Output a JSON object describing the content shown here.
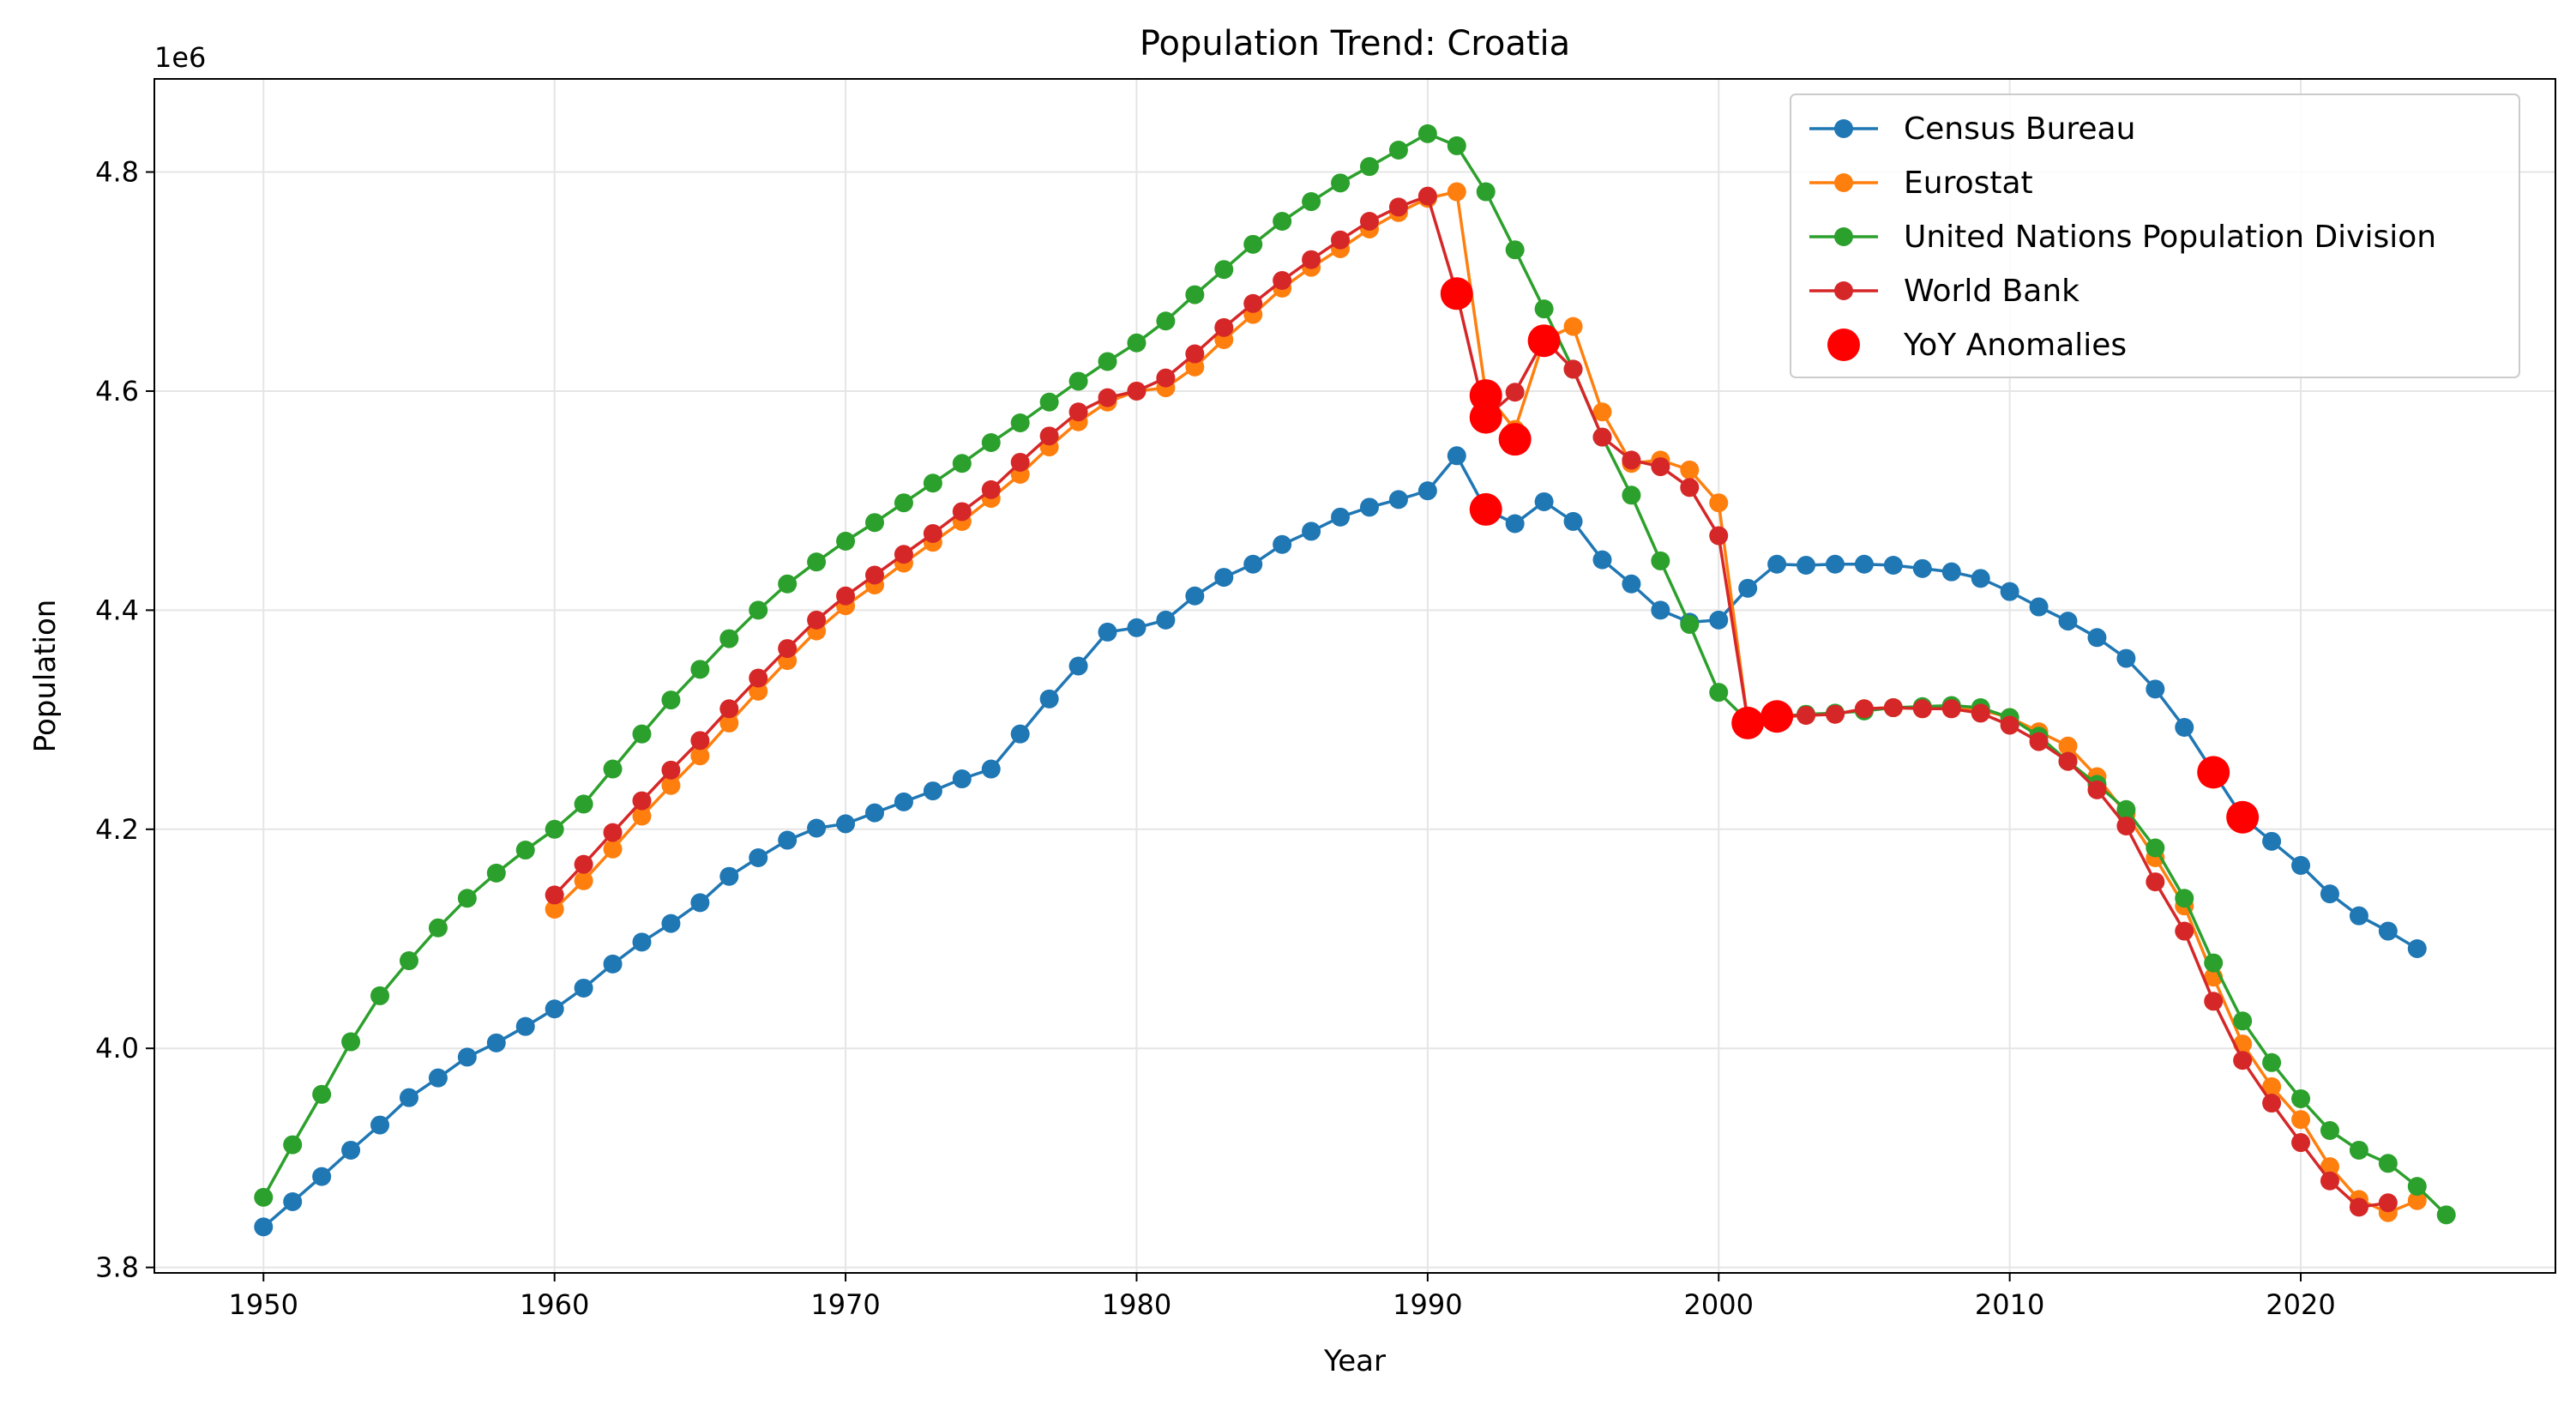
{
  "chart_data": {
    "type": "line",
    "title": "Population Trend: Croatia",
    "xlabel": "Year",
    "ylabel": "Population",
    "y_offset_label": "1e6",
    "xlim": [
      1946.25,
      2028.75
    ],
    "ylim": [
      3.795,
      4.885
    ],
    "x_ticks": [
      1950,
      1960,
      1970,
      1980,
      1990,
      2000,
      2010,
      2020
    ],
    "x_tick_labels": [
      "1950",
      "1960",
      "1970",
      "1980",
      "1990",
      "2000",
      "2010",
      "2020"
    ],
    "y_ticks": [
      3.8,
      4.0,
      4.2,
      4.4,
      4.6,
      4.8
    ],
    "y_tick_labels": [
      "3.8",
      "4.0",
      "4.2",
      "4.4",
      "4.6",
      "4.8"
    ],
    "y_unit_note": "values in millions (axis multiplier 1e6)",
    "grid": true,
    "legend_position": "top-right",
    "series": [
      {
        "name": "Census Bureau",
        "color": "#1f77b4",
        "x": [
          1950,
          1951,
          1952,
          1953,
          1954,
          1955,
          1956,
          1957,
          1958,
          1959,
          1960,
          1961,
          1962,
          1963,
          1964,
          1965,
          1966,
          1967,
          1968,
          1969,
          1970,
          1971,
          1972,
          1973,
          1974,
          1975,
          1976,
          1977,
          1978,
          1979,
          1980,
          1981,
          1982,
          1983,
          1984,
          1985,
          1986,
          1987,
          1988,
          1989,
          1990,
          1991,
          1992,
          1993,
          1994,
          1995,
          1996,
          1997,
          1998,
          1999,
          2000,
          2001,
          2002,
          2003,
          2004,
          2005,
          2006,
          2007,
          2008,
          2009,
          2010,
          2011,
          2012,
          2013,
          2014,
          2015,
          2016,
          2017,
          2018,
          2019,
          2020,
          2021,
          2022,
          2023,
          2024
        ],
        "y": [
          3.837,
          3.86,
          3.883,
          3.907,
          3.93,
          3.955,
          3.973,
          3.992,
          4.005,
          4.02,
          4.036,
          4.055,
          4.077,
          4.097,
          4.114,
          4.133,
          4.157,
          4.174,
          4.19,
          4.201,
          4.205,
          4.215,
          4.225,
          4.235,
          4.246,
          4.255,
          4.287,
          4.319,
          4.349,
          4.38,
          4.384,
          4.391,
          4.413,
          4.43,
          4.442,
          4.46,
          4.472,
          4.485,
          4.494,
          4.501,
          4.509,
          4.541,
          4.492,
          4.479,
          4.499,
          4.481,
          4.446,
          4.424,
          4.4,
          4.389,
          4.391,
          4.42,
          4.442,
          4.441,
          4.442,
          4.442,
          4.441,
          4.438,
          4.435,
          4.429,
          4.417,
          4.403,
          4.39,
          4.375,
          4.356,
          4.328,
          4.293,
          4.252,
          4.211,
          4.189,
          4.167,
          4.141,
          4.121,
          4.107,
          4.091
        ]
      },
      {
        "name": "Eurostat",
        "color": "#ff7f0e",
        "x": [
          1960,
          1961,
          1962,
          1963,
          1964,
          1965,
          1966,
          1967,
          1968,
          1969,
          1970,
          1971,
          1972,
          1973,
          1974,
          1975,
          1976,
          1977,
          1978,
          1979,
          1980,
          1981,
          1982,
          1983,
          1984,
          1985,
          1986,
          1987,
          1988,
          1989,
          1990,
          1991,
          1992,
          1993,
          1994,
          1995,
          1996,
          1997,
          1998,
          1999,
          2000,
          2001,
          2002,
          2003,
          2004,
          2005,
          2006,
          2007,
          2008,
          2009,
          2010,
          2011,
          2012,
          2013,
          2014,
          2015,
          2016,
          2017,
          2018,
          2019,
          2020,
          2021,
          2022,
          2023,
          2024
        ],
        "y": [
          4.127,
          4.153,
          4.182,
          4.212,
          4.24,
          4.267,
          4.297,
          4.326,
          4.354,
          4.381,
          4.404,
          4.423,
          4.443,
          4.462,
          4.481,
          4.502,
          4.524,
          4.549,
          4.572,
          4.59,
          4.6,
          4.603,
          4.622,
          4.647,
          4.67,
          4.694,
          4.713,
          4.73,
          4.748,
          4.763,
          4.776,
          4.782,
          4.598,
          4.565,
          4.647,
          4.659,
          4.581,
          4.534,
          4.537,
          4.528,
          4.498,
          4.298,
          4.302,
          4.304,
          4.305,
          4.31,
          4.311,
          4.31,
          4.31,
          4.309,
          4.302,
          4.289,
          4.276,
          4.248,
          4.214,
          4.174,
          4.13,
          4.065,
          4.004,
          3.965,
          3.935,
          3.892,
          3.862,
          3.85,
          3.861
        ]
      },
      {
        "name": "United Nations Population Division",
        "color": "#2ca02c",
        "x": [
          1950,
          1951,
          1952,
          1953,
          1954,
          1955,
          1956,
          1957,
          1958,
          1959,
          1960,
          1961,
          1962,
          1963,
          1964,
          1965,
          1966,
          1967,
          1968,
          1969,
          1970,
          1971,
          1972,
          1973,
          1974,
          1975,
          1976,
          1977,
          1978,
          1979,
          1980,
          1981,
          1982,
          1983,
          1984,
          1985,
          1986,
          1987,
          1988,
          1989,
          1990,
          1991,
          1992,
          1993,
          1994,
          1995,
          1996,
          1997,
          1998,
          1999,
          2000,
          2001,
          2002,
          2003,
          2004,
          2005,
          2006,
          2007,
          2008,
          2009,
          2010,
          2011,
          2012,
          2013,
          2014,
          2015,
          2016,
          2017,
          2018,
          2019,
          2020,
          2021,
          2022,
          2023,
          2024,
          2025
        ],
        "y": [
          3.864,
          3.912,
          3.958,
          4.006,
          4.048,
          4.08,
          4.11,
          4.137,
          4.16,
          4.181,
          4.2,
          4.223,
          4.255,
          4.287,
          4.318,
          4.346,
          4.374,
          4.4,
          4.424,
          4.444,
          4.463,
          4.48,
          4.498,
          4.516,
          4.534,
          4.553,
          4.571,
          4.59,
          4.609,
          4.627,
          4.644,
          4.664,
          4.688,
          4.711,
          4.734,
          4.755,
          4.773,
          4.79,
          4.805,
          4.82,
          4.835,
          4.824,
          4.782,
          4.729,
          4.675,
          4.62,
          4.558,
          4.505,
          4.445,
          4.387,
          4.325,
          4.299,
          4.303,
          4.305,
          4.306,
          4.308,
          4.311,
          4.312,
          4.313,
          4.311,
          4.302,
          4.285,
          4.262,
          4.241,
          4.218,
          4.183,
          4.137,
          4.078,
          4.025,
          3.987,
          3.954,
          3.925,
          3.907,
          3.895,
          3.874,
          3.848
        ]
      },
      {
        "name": "World Bank",
        "color": "#d62728",
        "x": [
          1960,
          1961,
          1962,
          1963,
          1964,
          1965,
          1966,
          1967,
          1968,
          1969,
          1970,
          1971,
          1972,
          1973,
          1974,
          1975,
          1976,
          1977,
          1978,
          1979,
          1980,
          1981,
          1982,
          1983,
          1984,
          1985,
          1986,
          1987,
          1988,
          1989,
          1990,
          1991,
          1992,
          1993,
          1994,
          1995,
          1996,
          1997,
          1998,
          1999,
          2000,
          2001,
          2002,
          2003,
          2004,
          2005,
          2006,
          2007,
          2008,
          2009,
          2010,
          2011,
          2012,
          2013,
          2014,
          2015,
          2016,
          2017,
          2018,
          2019,
          2020,
          2021,
          2022,
          2023
        ],
        "y": [
          4.14,
          4.168,
          4.197,
          4.226,
          4.254,
          4.281,
          4.31,
          4.338,
          4.365,
          4.391,
          4.413,
          4.432,
          4.451,
          4.47,
          4.49,
          4.51,
          4.535,
          4.559,
          4.581,
          4.594,
          4.6,
          4.612,
          4.634,
          4.658,
          4.68,
          4.701,
          4.72,
          4.738,
          4.755,
          4.768,
          4.778,
          4.689,
          4.576,
          4.599,
          4.647,
          4.62,
          4.558,
          4.537,
          4.531,
          4.512,
          4.468,
          4.299,
          4.303,
          4.304,
          4.305,
          4.31,
          4.311,
          4.31,
          4.31,
          4.306,
          4.295,
          4.28,
          4.262,
          4.236,
          4.203,
          4.152,
          4.107,
          4.043,
          3.989,
          3.95,
          3.914,
          3.879,
          3.855,
          3.859
        ]
      }
    ],
    "anomalies": {
      "name": "YoY Anomalies",
      "color": "#ff0000",
      "x": [
        1991,
        1992,
        1992,
        1992,
        1993,
        1994,
        2001,
        2002,
        2017,
        2018
      ],
      "y": [
        4.689,
        4.596,
        4.576,
        4.492,
        4.556,
        4.646,
        4.297,
        4.303,
        4.252,
        4.211
      ]
    }
  }
}
